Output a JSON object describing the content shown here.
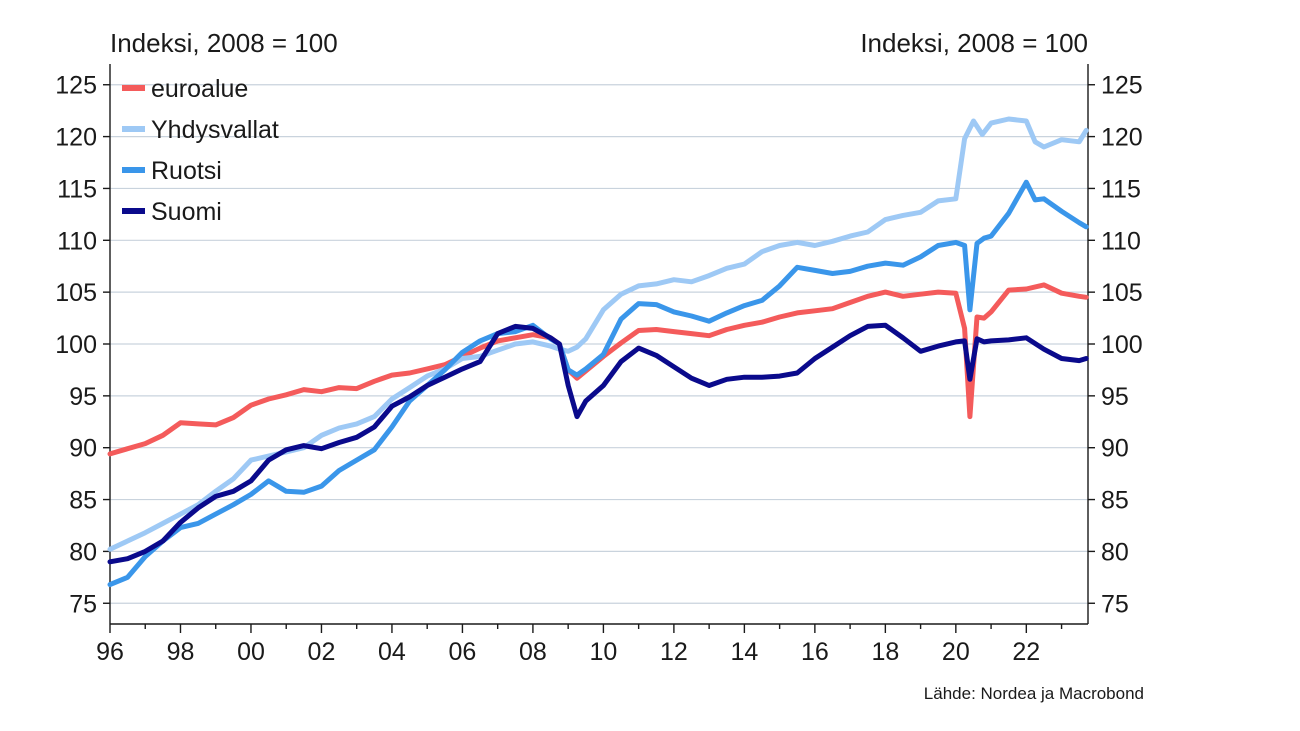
{
  "chart_data": {
    "type": "line",
    "y_unit_left": "Indeksi, 2008 = 100",
    "y_unit_right": "Indeksi, 2008 = 100",
    "source": "Lähde: Nordea ja Macrobond",
    "ylim": [
      73,
      127
    ],
    "xlim": [
      1996.0,
      2023.75
    ],
    "y_ticks": [
      75,
      80,
      85,
      90,
      95,
      100,
      105,
      110,
      115,
      120,
      125
    ],
    "x_ticks": [
      {
        "value": 1996,
        "label": "96"
      },
      {
        "value": 1998,
        "label": "98"
      },
      {
        "value": 2000,
        "label": "00"
      },
      {
        "value": 2002,
        "label": "02"
      },
      {
        "value": 2004,
        "label": "04"
      },
      {
        "value": 2006,
        "label": "06"
      },
      {
        "value": 2008,
        "label": "08"
      },
      {
        "value": 2010,
        "label": "10"
      },
      {
        "value": 2012,
        "label": "12"
      },
      {
        "value": 2014,
        "label": "14"
      },
      {
        "value": 2016,
        "label": "16"
      },
      {
        "value": 2018,
        "label": "18"
      },
      {
        "value": 2020,
        "label": "20"
      },
      {
        "value": 2022,
        "label": "22"
      }
    ],
    "grid": true,
    "legend_position": "top-left",
    "series": [
      {
        "name": "euroalue",
        "color": "#f45b5b",
        "x": [
          1996.0,
          1996.5,
          1997.0,
          1997.5,
          1998.0,
          1998.5,
          1999.0,
          1999.5,
          2000.0,
          2000.5,
          2001.0,
          2001.5,
          2002.0,
          2002.5,
          2003.0,
          2003.5,
          2004.0,
          2004.5,
          2005.0,
          2005.5,
          2006.0,
          2006.5,
          2007.0,
          2007.5,
          2008.0,
          2008.5,
          2008.75,
          2009.0,
          2009.25,
          2009.5,
          2010.0,
          2010.5,
          2011.0,
          2011.5,
          2012.0,
          2012.5,
          2013.0,
          2013.5,
          2014.0,
          2014.5,
          2015.0,
          2015.5,
          2016.0,
          2016.5,
          2017.0,
          2017.5,
          2018.0,
          2018.5,
          2019.0,
          2019.5,
          2020.0,
          2020.25,
          2020.4,
          2020.6,
          2020.8,
          2021.0,
          2021.5,
          2022.0,
          2022.5,
          2023.0,
          2023.5,
          2023.7
        ],
        "values": [
          89.4,
          89.9,
          90.4,
          91.2,
          92.4,
          92.3,
          92.2,
          92.9,
          94.1,
          94.7,
          95.1,
          95.6,
          95.4,
          95.8,
          95.7,
          96.4,
          97.0,
          97.2,
          97.6,
          98.0,
          98.8,
          99.6,
          100.3,
          100.6,
          100.9,
          100.6,
          100.0,
          97.5,
          96.7,
          97.4,
          98.8,
          100.1,
          101.3,
          101.4,
          101.2,
          101.0,
          100.8,
          101.4,
          101.8,
          102.1,
          102.6,
          103.0,
          103.2,
          103.4,
          104.0,
          104.6,
          105.0,
          104.6,
          104.8,
          105.0,
          104.9,
          101.5,
          93.0,
          102.6,
          102.5,
          103.1,
          105.2,
          105.3,
          105.7,
          104.9,
          104.6,
          104.5
        ]
      },
      {
        "name": "Yhdysvallat",
        "color": "#9ec9f5",
        "x": [
          1996.0,
          1996.5,
          1997.0,
          1997.5,
          1998.0,
          1998.5,
          1999.0,
          1999.5,
          2000.0,
          2000.5,
          2001.0,
          2001.5,
          2002.0,
          2002.5,
          2003.0,
          2003.5,
          2004.0,
          2004.5,
          2005.0,
          2005.5,
          2006.0,
          2006.5,
          2007.0,
          2007.5,
          2008.0,
          2008.5,
          2008.75,
          2009.0,
          2009.25,
          2009.5,
          2010.0,
          2010.5,
          2011.0,
          2011.5,
          2012.0,
          2012.5,
          2013.0,
          2013.5,
          2014.0,
          2014.5,
          2015.0,
          2015.5,
          2016.0,
          2016.5,
          2017.0,
          2017.5,
          2018.0,
          2018.5,
          2019.0,
          2019.5,
          2020.0,
          2020.25,
          2020.5,
          2020.75,
          2021.0,
          2021.5,
          2022.0,
          2022.25,
          2022.5,
          2023.0,
          2023.5,
          2023.7
        ],
        "values": [
          80.2,
          81.0,
          81.8,
          82.7,
          83.6,
          84.5,
          85.8,
          87.0,
          88.8,
          89.2,
          89.6,
          90.0,
          91.2,
          91.9,
          92.3,
          93.0,
          94.7,
          95.8,
          96.9,
          97.6,
          98.6,
          98.8,
          99.4,
          100.0,
          100.2,
          99.8,
          99.5,
          99.3,
          99.7,
          100.5,
          103.3,
          104.8,
          105.6,
          105.8,
          106.2,
          106.0,
          106.6,
          107.3,
          107.7,
          108.9,
          109.5,
          109.8,
          109.5,
          109.9,
          110.4,
          110.8,
          112.0,
          112.4,
          112.7,
          113.8,
          114.0,
          119.8,
          121.5,
          120.2,
          121.3,
          121.7,
          121.5,
          119.5,
          119.0,
          119.7,
          119.5,
          120.6
        ]
      },
      {
        "name": "Ruotsi",
        "color": "#3a96ea",
        "x": [
          1996.0,
          1996.5,
          1997.0,
          1997.5,
          1998.0,
          1998.5,
          1999.0,
          1999.5,
          2000.0,
          2000.5,
          2001.0,
          2001.5,
          2002.0,
          2002.5,
          2003.0,
          2003.5,
          2004.0,
          2004.5,
          2005.0,
          2005.5,
          2006.0,
          2006.5,
          2007.0,
          2007.5,
          2008.0,
          2008.5,
          2008.75,
          2009.0,
          2009.25,
          2009.5,
          2010.0,
          2010.5,
          2011.0,
          2011.5,
          2012.0,
          2012.5,
          2013.0,
          2013.5,
          2014.0,
          2014.5,
          2015.0,
          2015.5,
          2016.0,
          2016.5,
          2017.0,
          2017.5,
          2018.0,
          2018.5,
          2019.0,
          2019.5,
          2020.0,
          2020.25,
          2020.4,
          2020.6,
          2020.8,
          2021.0,
          2021.5,
          2022.0,
          2022.25,
          2022.5,
          2023.0,
          2023.5,
          2023.7
        ],
        "values": [
          76.8,
          77.5,
          79.5,
          81.0,
          82.3,
          82.7,
          83.6,
          84.5,
          85.5,
          86.8,
          85.8,
          85.7,
          86.3,
          87.8,
          88.8,
          89.8,
          92.0,
          94.5,
          96.0,
          97.5,
          99.2,
          100.3,
          101.0,
          101.2,
          101.8,
          100.5,
          100.0,
          97.5,
          97.0,
          97.6,
          99.0,
          102.4,
          103.9,
          103.8,
          103.1,
          102.7,
          102.2,
          103.0,
          103.7,
          104.2,
          105.6,
          107.4,
          107.1,
          106.8,
          107.0,
          107.5,
          107.8,
          107.6,
          108.4,
          109.5,
          109.8,
          109.5,
          103.3,
          109.7,
          110.2,
          110.4,
          112.6,
          115.6,
          113.9,
          114.0,
          112.8,
          111.7,
          111.3
        ]
      },
      {
        "name": "Suomi",
        "color": "#0a0a8c",
        "x": [
          1996.0,
          1996.5,
          1997.0,
          1997.5,
          1998.0,
          1998.5,
          1999.0,
          1999.5,
          2000.0,
          2000.5,
          2001.0,
          2001.5,
          2002.0,
          2002.5,
          2003.0,
          2003.5,
          2004.0,
          2004.5,
          2005.0,
          2005.5,
          2006.0,
          2006.5,
          2007.0,
          2007.5,
          2008.0,
          2008.5,
          2008.75,
          2009.0,
          2009.25,
          2009.5,
          2010.0,
          2010.5,
          2011.0,
          2011.5,
          2012.0,
          2012.5,
          2013.0,
          2013.5,
          2014.0,
          2014.5,
          2015.0,
          2015.5,
          2016.0,
          2016.5,
          2017.0,
          2017.5,
          2018.0,
          2018.5,
          2019.0,
          2019.5,
          2020.0,
          2020.25,
          2020.4,
          2020.6,
          2020.8,
          2021.0,
          2021.5,
          2022.0,
          2022.5,
          2023.0,
          2023.5,
          2023.7
        ],
        "values": [
          79.0,
          79.3,
          80.0,
          81.0,
          82.8,
          84.2,
          85.3,
          85.8,
          86.8,
          88.8,
          89.8,
          90.2,
          89.9,
          90.5,
          91.0,
          92.0,
          94.0,
          94.9,
          96.0,
          96.8,
          97.6,
          98.3,
          101.0,
          101.7,
          101.5,
          100.6,
          100.0,
          96.0,
          93.0,
          94.5,
          96.0,
          98.3,
          99.6,
          98.9,
          97.8,
          96.7,
          96.0,
          96.6,
          96.8,
          96.8,
          96.9,
          97.2,
          98.6,
          99.7,
          100.8,
          101.7,
          101.8,
          100.6,
          99.3,
          99.8,
          100.2,
          100.3,
          96.6,
          100.5,
          100.2,
          100.3,
          100.4,
          100.6,
          99.5,
          98.6,
          98.4,
          98.6
        ]
      }
    ]
  }
}
